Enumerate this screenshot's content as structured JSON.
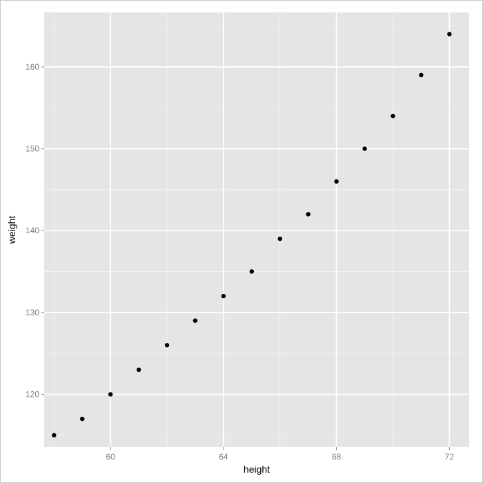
{
  "chart_data": {
    "type": "scatter",
    "title": "",
    "xlabel": "height",
    "ylabel": "weight",
    "xlim": [
      57.65,
      72.7
    ],
    "ylim": [
      113.55,
      166.65
    ],
    "x_ticks": [
      60,
      64,
      68,
      72
    ],
    "x_tick_labels": [
      "60",
      "64",
      "68",
      "72"
    ],
    "y_ticks": [
      120,
      130,
      140,
      150,
      160
    ],
    "y_tick_labels": [
      "120",
      "130",
      "140",
      "150",
      "160"
    ],
    "x_minor_ticks": [
      58,
      62,
      66,
      70
    ],
    "y_minor_ticks": [
      115,
      125,
      135,
      145,
      155,
      165
    ],
    "grid": true,
    "legend": "none",
    "colors": {
      "panel_background": "#e5e5e5",
      "grid_major": "#ffffff",
      "grid_minor": "#f2f2f2",
      "point": "#000000",
      "tick_text": "#7f7f7f",
      "axis_title": "#000000"
    },
    "series": [
      {
        "x": [
          58,
          59,
          60,
          61,
          62,
          63,
          64,
          65,
          66,
          67,
          68,
          69,
          70,
          71,
          72
        ],
        "y": [
          115,
          117,
          120,
          123,
          126,
          129,
          132,
          135,
          139,
          142,
          146,
          150,
          154,
          159,
          164
        ]
      }
    ]
  }
}
